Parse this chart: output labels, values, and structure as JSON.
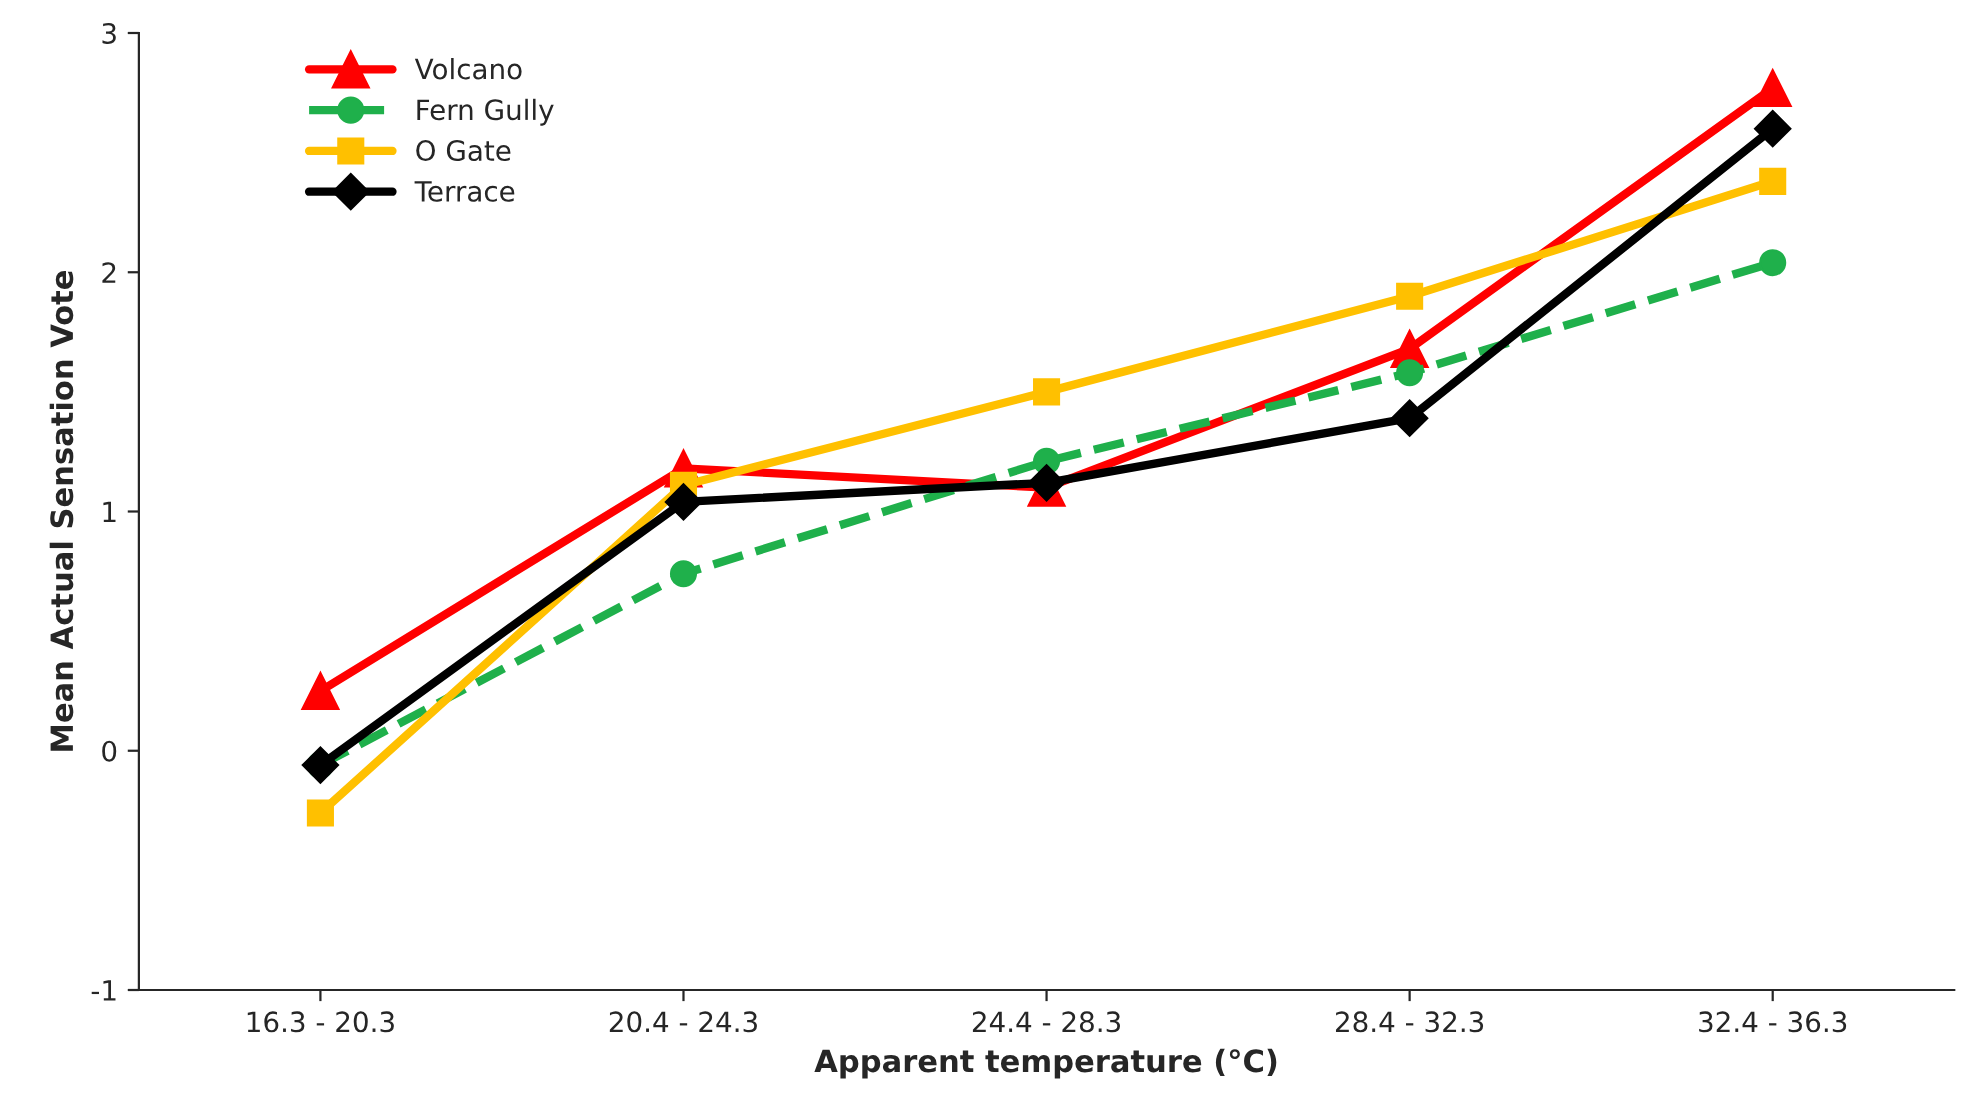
{
  "chart_data": {
    "type": "line",
    "xlabel": "Apparent temperature (°C)",
    "ylabel": "Mean Actual Sensation Vote",
    "categories": [
      "16.3 - 20.3",
      "20.4 - 24.3",
      "24.4 - 28.3",
      "28.4 - 32.3",
      "32.4 - 36.3"
    ],
    "series": [
      {
        "name": "Volcano",
        "color": "#ff0000",
        "marker": "triangle",
        "line_style": "solid",
        "values": [
          0.25,
          1.18,
          1.1,
          1.68,
          2.77
        ]
      },
      {
        "name": "Fern Gully",
        "color": "#1fb04b",
        "marker": "circle",
        "line_style": "dashed",
        "values": [
          -0.06,
          0.74,
          1.21,
          1.58,
          2.04
        ]
      },
      {
        "name": "O Gate",
        "color": "#ffc000",
        "marker": "square",
        "line_style": "solid",
        "values": [
          -0.26,
          1.11,
          1.5,
          1.9,
          2.38
        ]
      },
      {
        "name": "Terrace",
        "color": "#000000",
        "marker": "diamond",
        "line_style": "solid",
        "values": [
          -0.06,
          1.04,
          1.12,
          1.39,
          2.6
        ]
      }
    ],
    "ylim": [
      -1,
      3
    ],
    "yticks": [
      -1,
      0,
      1,
      2,
      3
    ],
    "grid": false,
    "legend": "top left"
  }
}
